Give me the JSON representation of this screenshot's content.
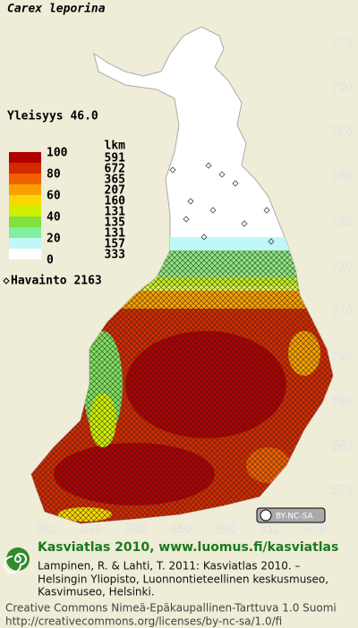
{
  "title": "Carex leporina",
  "frequency": "Yleisyys  46.0",
  "legend": {
    "scale_labels": [
      100,
      80,
      60,
      40,
      20,
      0
    ],
    "count_header": "lkm",
    "counts": [
      591,
      672,
      365,
      207,
      160,
      131,
      135,
      131,
      157,
      333
    ],
    "observation": "Havainto 2163"
  },
  "y_labels": [
    770,
    760,
    750,
    740,
    730,
    720,
    710,
    700,
    690,
    680,
    670
  ],
  "x_labels": [
    310,
    320,
    330,
    340,
    350,
    360,
    370
  ],
  "badge": "BY-NC-SA",
  "footer": {
    "headline": "Kasviatlas 2010, www.luomus.fi/kasviatlas",
    "citation": [
      "Lampinen, R. & Lahti, T. 2011: Kasviatlas 2010. –",
      "Helsingin Yliopisto, Luonnontieteellinen keskusmuseo,",
      "Kasvimuseo, Helsinki."
    ],
    "license": "Creative Commons Nimeä-Epäkaupallinen-Tarttuva 1.0 Suomi",
    "url": "http://creativecommons.org/licenses/by-nc-sa/1.0/fi"
  }
}
